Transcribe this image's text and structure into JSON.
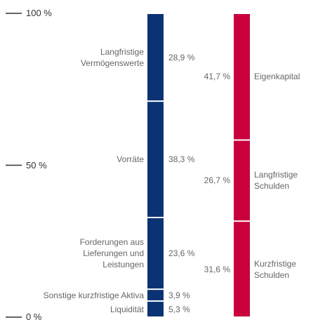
{
  "chart_data": {
    "type": "stacked_bar",
    "ylim": [
      0,
      100
    ],
    "yticks": [
      {
        "value": 0,
        "label": "0 %"
      },
      {
        "value": 50,
        "label": "50 %"
      },
      {
        "value": 100,
        "label": "100 %"
      }
    ],
    "columns": [
      {
        "color": "#0b3275",
        "segments": [
          {
            "name": "Liquidität",
            "value": 5.3,
            "value_label": "5,3 %"
          },
          {
            "name": "Sonstige kurzfristige Aktiva",
            "value": 3.9,
            "value_label": "3,9 %"
          },
          {
            "name": "Forderungen aus\nLieferungen und\nLeistungen",
            "value": 23.6,
            "value_label": "23,6 %"
          },
          {
            "name": "Vorräte",
            "value": 38.3,
            "value_label": "38,3 %"
          },
          {
            "name": "Langfristige\nVermögenswerte",
            "value": 28.9,
            "value_label": "28,9 %"
          }
        ]
      },
      {
        "color": "#c8003c",
        "segments": [
          {
            "name": "Kurzfristige\nSchulden",
            "value": 31.6,
            "value_label": "31,6 %"
          },
          {
            "name": "Langfristige\nSchulden",
            "value": 26.7,
            "value_label": "26,7 %"
          },
          {
            "name": "Eigenkapital",
            "value": 41.7,
            "value_label": "41,7 %"
          }
        ]
      }
    ]
  }
}
